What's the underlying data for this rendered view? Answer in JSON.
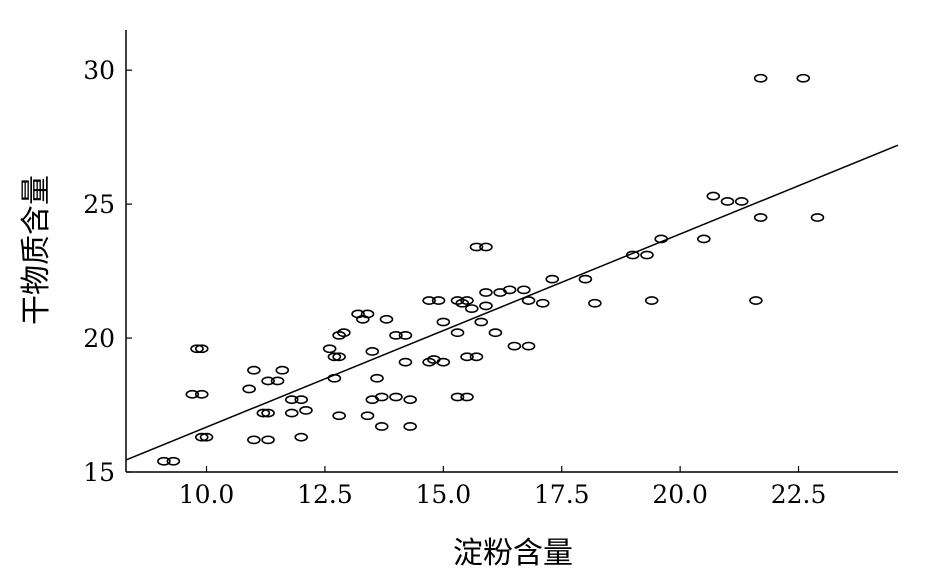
{
  "chart_data": {
    "type": "scatter",
    "title": "",
    "xlabel": "淀粉含量",
    "ylabel": "干物质含量",
    "xlim": [
      8.3,
      24.6
    ],
    "ylim": [
      15,
      31.5
    ],
    "xticks": [
      10.0,
      12.5,
      15.0,
      17.5,
      20.0,
      22.5
    ],
    "xtick_labels": [
      "10.0",
      "12.5",
      "15.0",
      "17.5",
      "20.0",
      "22.5"
    ],
    "yticks": [
      15,
      20,
      25,
      30
    ],
    "ytick_labels": [
      "15",
      "20",
      "25",
      "30"
    ],
    "grid": false,
    "fit_line": {
      "x": [
        8.3,
        24.6
      ],
      "y": [
        15.45,
        27.2
      ]
    },
    "points": [
      [
        9.1,
        15.4
      ],
      [
        9.3,
        15.4
      ],
      [
        9.7,
        17.9
      ],
      [
        9.9,
        17.9
      ],
      [
        9.8,
        19.6
      ],
      [
        9.9,
        19.6
      ],
      [
        9.9,
        16.3
      ],
      [
        10.0,
        16.3
      ],
      [
        10.9,
        18.1
      ],
      [
        11.0,
        18.8
      ],
      [
        11.0,
        16.2
      ],
      [
        11.2,
        17.2
      ],
      [
        11.3,
        17.2
      ],
      [
        11.3,
        16.2
      ],
      [
        11.3,
        18.4
      ],
      [
        11.5,
        18.4
      ],
      [
        11.6,
        18.8
      ],
      [
        11.8,
        17.2
      ],
      [
        11.8,
        17.7
      ],
      [
        12.0,
        17.7
      ],
      [
        12.1,
        17.3
      ],
      [
        12.0,
        16.3
      ],
      [
        12.6,
        19.6
      ],
      [
        12.7,
        19.3
      ],
      [
        12.8,
        19.3
      ],
      [
        12.8,
        20.1
      ],
      [
        12.9,
        20.2
      ],
      [
        12.8,
        17.1
      ],
      [
        12.7,
        18.5
      ],
      [
        13.2,
        20.9
      ],
      [
        13.3,
        20.7
      ],
      [
        13.4,
        20.9
      ],
      [
        13.4,
        17.1
      ],
      [
        13.5,
        17.7
      ],
      [
        13.5,
        19.5
      ],
      [
        13.6,
        18.5
      ],
      [
        13.7,
        16.7
      ],
      [
        13.8,
        20.7
      ],
      [
        13.7,
        17.8
      ],
      [
        14.0,
        17.8
      ],
      [
        14.0,
        20.1
      ],
      [
        14.2,
        20.1
      ],
      [
        14.2,
        19.1
      ],
      [
        14.3,
        17.7
      ],
      [
        14.3,
        16.7
      ],
      [
        14.7,
        21.4
      ],
      [
        14.8,
        19.2
      ],
      [
        14.7,
        19.1
      ],
      [
        14.9,
        21.4
      ],
      [
        15.0,
        20.6
      ],
      [
        15.0,
        19.1
      ],
      [
        15.3,
        21.4
      ],
      [
        15.3,
        20.2
      ],
      [
        15.3,
        17.8
      ],
      [
        15.4,
        21.3
      ],
      [
        15.5,
        21.4
      ],
      [
        15.5,
        19.3
      ],
      [
        15.5,
        17.8
      ],
      [
        15.6,
        21.1
      ],
      [
        15.7,
        19.3
      ],
      [
        15.7,
        23.4
      ],
      [
        15.9,
        23.4
      ],
      [
        15.8,
        20.6
      ],
      [
        15.9,
        21.2
      ],
      [
        15.9,
        21.7
      ],
      [
        16.1,
        20.2
      ],
      [
        16.2,
        21.7
      ],
      [
        16.4,
        21.8
      ],
      [
        16.5,
        19.7
      ],
      [
        16.7,
        21.8
      ],
      [
        16.8,
        21.4
      ],
      [
        16.8,
        19.7
      ],
      [
        17.1,
        21.3
      ],
      [
        17.3,
        22.2
      ],
      [
        18.0,
        22.2
      ],
      [
        18.2,
        21.3
      ],
      [
        19.0,
        23.1
      ],
      [
        19.3,
        23.1
      ],
      [
        19.4,
        21.4
      ],
      [
        19.6,
        23.7
      ],
      [
        20.5,
        23.7
      ],
      [
        20.7,
        25.3
      ],
      [
        21.0,
        25.1
      ],
      [
        21.3,
        25.1
      ],
      [
        21.6,
        21.4
      ],
      [
        21.7,
        24.5
      ],
      [
        21.7,
        29.7
      ],
      [
        22.6,
        29.7
      ],
      [
        22.9,
        24.5
      ]
    ]
  }
}
